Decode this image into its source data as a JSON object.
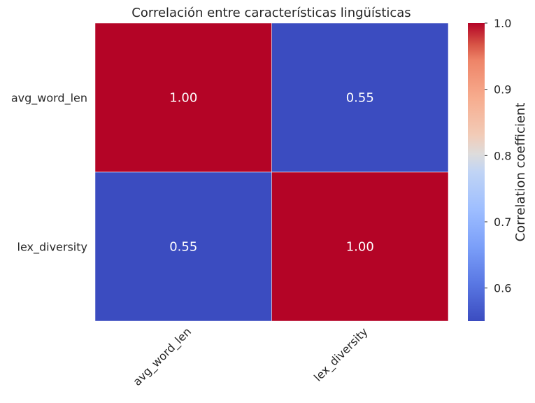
{
  "chart_data": {
    "type": "heatmap",
    "title": "Correlación entre características lingüísticas",
    "rows": [
      "avg_word_len",
      "lex_diversity"
    ],
    "columns": [
      "avg_word_len",
      "lex_diversity"
    ],
    "values": [
      [
        1.0,
        0.55
      ],
      [
        0.55,
        1.0
      ]
    ],
    "cell_labels": [
      [
        "1.00",
        "0.55"
      ],
      [
        "0.55",
        "1.00"
      ]
    ],
    "colormap": "coolwarm",
    "color_low": "#3b4cc0",
    "color_high": "#b40426",
    "colorbar": {
      "label": "Correlation coefficient",
      "range": [
        0.55,
        1.0
      ],
      "ticks": [
        0.6,
        0.7,
        0.8,
        0.9,
        1.0
      ],
      "tick_labels": [
        "0.6",
        "0.7",
        "0.8",
        "0.9",
        "1.0"
      ]
    }
  }
}
